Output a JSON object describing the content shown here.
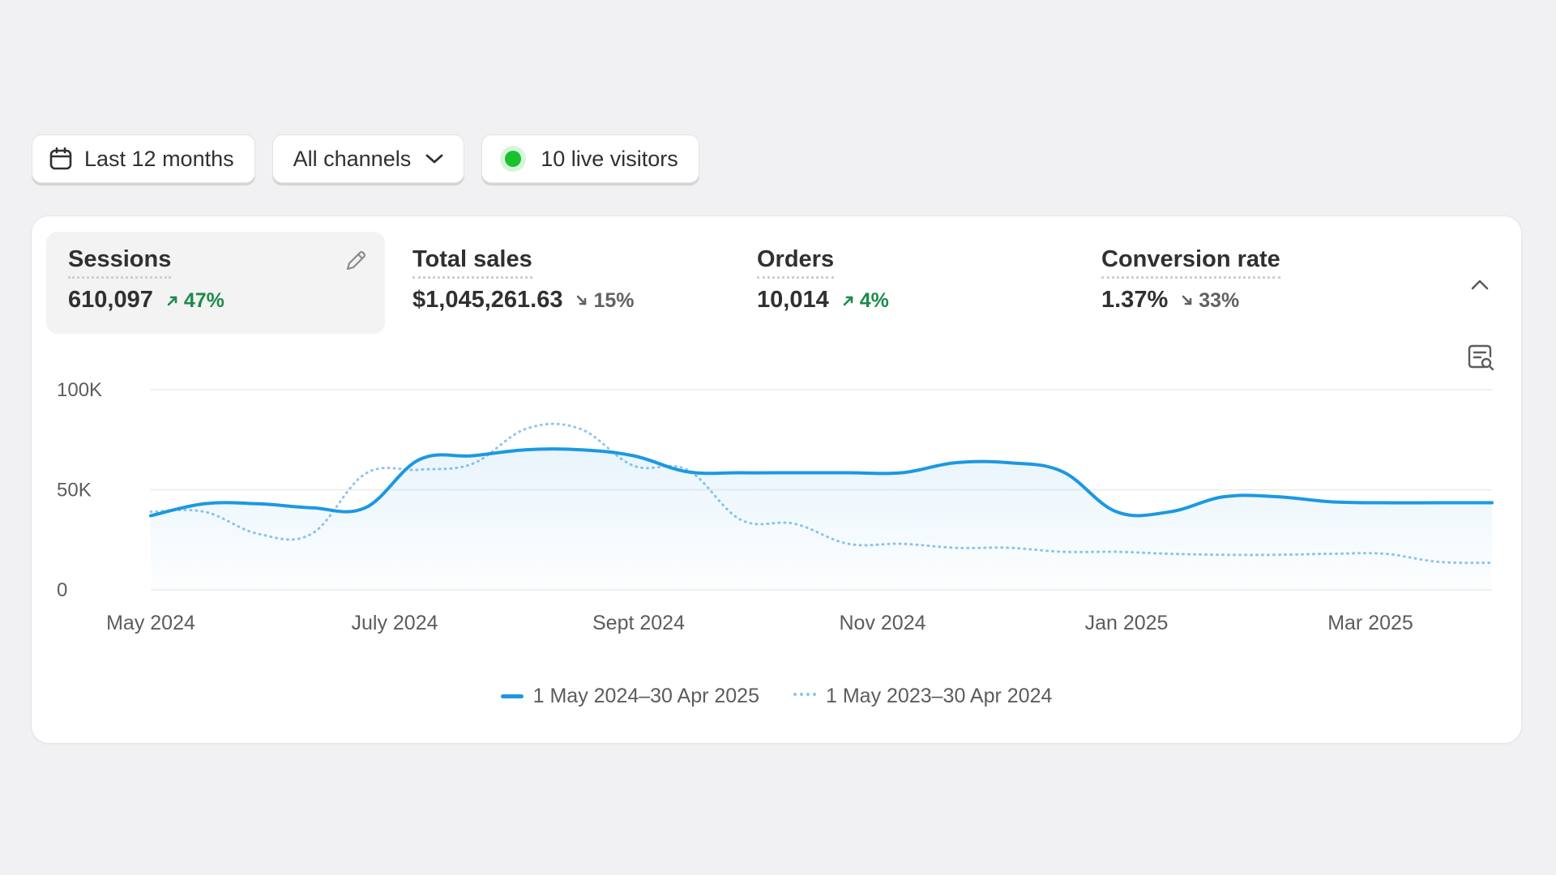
{
  "filters": {
    "date_range": {
      "label": "Last 12 months",
      "icon": "calendar-icon"
    },
    "channels": {
      "label": "All channels",
      "icon": "chevron-down-icon"
    },
    "live": {
      "label": "10 live visitors",
      "dot_color": "#19c22e"
    }
  },
  "metrics": [
    {
      "label": "Sessions",
      "value": "610,097",
      "change": "47%",
      "direction": "up",
      "active": true
    },
    {
      "label": "Total sales",
      "value": "$1,045,261.63",
      "change": "15%",
      "direction": "down",
      "active": false
    },
    {
      "label": "Orders",
      "value": "10,014",
      "change": "4%",
      "direction": "up",
      "active": false
    },
    {
      "label": "Conversion rate",
      "value": "1.37%",
      "change": "33%",
      "direction": "down",
      "active": false
    }
  ],
  "colors": {
    "current_series": "#1c98e2",
    "previous_series": "#8ec6ec",
    "positive": "#1c8a4c",
    "negative": "#616161"
  },
  "chart_data": {
    "type": "line",
    "y_ticks": [
      "0",
      "50K",
      "100K"
    ],
    "ylim": [
      0,
      100000
    ],
    "grid": true,
    "legend_position": "bottom-center",
    "x_ticks": [
      "May 2024",
      "July 2024",
      "Sept 2024",
      "Nov 2024",
      "Jan 2025",
      "Mar 2025"
    ],
    "series": [
      {
        "name": "1 May 2024–30 Apr 2025",
        "style": "solid",
        "values": [
          37000,
          43000,
          43000,
          41000,
          41000,
          65000,
          67000,
          70000,
          70000,
          67000,
          59000,
          58500,
          58500,
          58500,
          58500,
          63500,
          63500,
          59000,
          39000,
          39000,
          46500,
          46500,
          44000,
          43500,
          43500,
          43500
        ]
      },
      {
        "name": "1 May 2023–30 Apr 2024",
        "style": "dotted",
        "values": [
          39000,
          39000,
          28000,
          28000,
          58000,
          60000,
          63000,
          80500,
          80500,
          62000,
          60000,
          35000,
          33000,
          23000,
          23000,
          21000,
          21000,
          19000,
          19000,
          18000,
          17500,
          17500,
          18000,
          18000,
          14000,
          13500
        ]
      }
    ]
  }
}
